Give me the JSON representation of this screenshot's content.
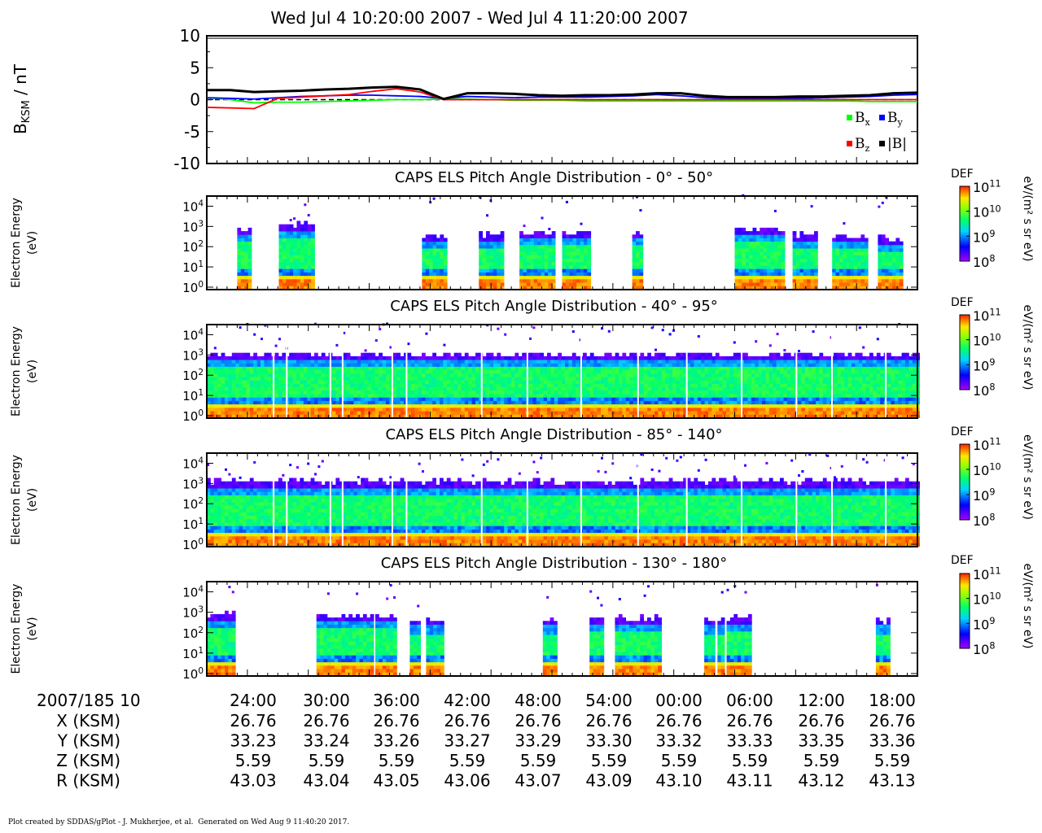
{
  "title": "Wed Jul 4 10:20:00 2007 - Wed Jul 4 11:20:00 2007",
  "footer": {
    "created": "Plot created by SDDAS/gPlot - J. Mukherjee, et al.",
    "generated": "Generated on Wed Aug 9 11:40:20 2017."
  },
  "chart_data": [
    {
      "type": "line",
      "id": "mag",
      "ylabel": "B_KSM / nT",
      "ylim": [
        -10,
        10
      ],
      "yticks": [
        10,
        5,
        0,
        -5,
        -10
      ],
      "x": [
        0,
        2,
        4,
        6,
        8,
        10,
        12,
        14,
        16,
        18,
        20,
        22,
        24,
        26,
        28,
        30,
        32,
        34,
        36,
        38,
        40,
        42,
        44,
        46,
        48,
        50,
        52,
        54,
        56,
        58,
        60
      ],
      "series": [
        {
          "name": "Bx",
          "label": "B",
          "sub": "x",
          "color": "#00ff00",
          "values": [
            0.3,
            0.0,
            -0.5,
            -0.4,
            -0.4,
            -0.3,
            -0.2,
            -0.1,
            0.0,
            0.0,
            0.1,
            0.1,
            0.0,
            -0.1,
            -0.1,
            -0.1,
            -0.2,
            -0.2,
            -0.2,
            -0.2,
            -0.2,
            -0.2,
            -0.2,
            -0.2,
            -0.2,
            -0.2,
            -0.2,
            -0.2,
            -0.3,
            -0.3,
            -0.3
          ]
        },
        {
          "name": "By",
          "label": "B",
          "sub": "y",
          "color": "#0000ff",
          "values": [
            0.3,
            0.2,
            0.1,
            0.3,
            0.5,
            0.6,
            0.7,
            0.7,
            0.6,
            0.5,
            0.2,
            0.5,
            0.4,
            0.3,
            0.4,
            0.4,
            0.4,
            0.5,
            0.6,
            0.8,
            0.6,
            0.3,
            0.2,
            0.2,
            0.2,
            0.2,
            0.3,
            0.4,
            0.5,
            0.7,
            0.8
          ]
        },
        {
          "name": "Bz",
          "label": "B",
          "sub": "z",
          "color": "#ff0000",
          "values": [
            -1.2,
            -1.3,
            -1.4,
            0.2,
            0.4,
            0.6,
            0.8,
            1.3,
            1.7,
            1.2,
            0.0,
            0.0,
            0.0,
            0.0,
            0.0,
            0.0,
            0.0,
            0.0,
            0.0,
            0.0,
            0.0,
            0.0,
            0.0,
            0.0,
            0.0,
            0.0,
            0.0,
            0.0,
            0.0,
            0.0,
            0.0
          ]
        },
        {
          "name": "|B|",
          "label": "|B|",
          "sub": "",
          "color": "#000000",
          "values": [
            1.5,
            1.5,
            1.2,
            1.3,
            1.4,
            1.6,
            1.7,
            1.9,
            2.0,
            1.6,
            0.1,
            1.0,
            1.0,
            0.9,
            0.7,
            0.6,
            0.7,
            0.7,
            0.8,
            1.0,
            1.0,
            0.6,
            0.4,
            0.4,
            0.4,
            0.5,
            0.5,
            0.6,
            0.7,
            1.0,
            1.1
          ]
        }
      ]
    },
    {
      "type": "heatmap",
      "id": "pad1",
      "title": "CAPS ELS Pitch Angle Distribution - 0° - 50°",
      "ylabel": "Electron Energy (eV)",
      "yrange": [
        0,
        4.3
      ],
      "colorbar": {
        "title": "DEF",
        "unit": "eV/(m² s sr eV)",
        "range": [
          8,
          11
        ],
        "ticks": [
          "10",
          "10",
          "10",
          "10"
        ],
        "exps": [
          "11",
          "10",
          "9",
          "8"
        ]
      },
      "segments": [
        [
          3.0,
          4.3,
          2.7
        ],
        [
          7.1,
          10.5,
          2.9
        ],
        [
          21.2,
          23.5,
          2.3
        ],
        [
          26.8,
          29.0,
          2.4
        ],
        [
          30.8,
          34.2,
          2.5
        ],
        [
          35.0,
          37.7,
          2.5
        ],
        [
          41.9,
          42.8,
          2.5
        ],
        [
          52.0,
          56.8,
          2.6
        ],
        [
          57.7,
          59.9,
          2.4
        ],
        [
          61.6,
          65.1,
          2.3
        ],
        [
          66.1,
          68.3,
          2.2
        ]
      ]
    },
    {
      "type": "heatmap",
      "id": "pad2",
      "title": "CAPS ELS Pitch Angle Distribution - 40° - 95°",
      "ylabel": "Electron Energy (eV)",
      "yrange": [
        0,
        4.3
      ],
      "colorbar": {
        "title": "DEF",
        "unit": "eV/(m² s sr eV)",
        "range": [
          8,
          11
        ],
        "ticks": [
          "10",
          "10",
          "10",
          "10"
        ],
        "exps": [
          "11",
          "10",
          "9",
          "8"
        ]
      },
      "segments": [
        [
          0.0,
          70.0,
          2.8
        ]
      ]
    },
    {
      "type": "heatmap",
      "id": "pad3",
      "title": "CAPS ELS Pitch Angle Distribution - 85° - 140°",
      "ylabel": "Electron Energy (eV)",
      "yrange": [
        0,
        4.3
      ],
      "colorbar": {
        "title": "DEF",
        "unit": "eV/(m² s sr eV)",
        "range": [
          8,
          11
        ],
        "ticks": [
          "10",
          "10",
          "10",
          "10"
        ],
        "exps": [
          "11",
          "10",
          "9",
          "8"
        ]
      },
      "segments": [
        [
          0.0,
          70.0,
          2.9
        ]
      ]
    },
    {
      "type": "heatmap",
      "id": "pad4",
      "title": "CAPS ELS Pitch Angle Distribution - 130° - 180°",
      "ylabel": "Electron Energy (eV)",
      "yrange": [
        0,
        4.3
      ],
      "colorbar": {
        "title": "DEF",
        "unit": "eV/(m² s sr eV)",
        "range": [
          8,
          11
        ],
        "ticks": [
          "10",
          "10",
          "10",
          "10"
        ],
        "exps": [
          "11",
          "10",
          "9",
          "8"
        ]
      },
      "segments": [
        [
          0.0,
          2.5,
          2.7
        ],
        [
          10.8,
          16.1,
          2.6
        ],
        [
          16.6,
          18.4,
          2.6
        ],
        [
          20.0,
          20.9,
          2.4
        ],
        [
          21.6,
          23.3,
          2.4
        ],
        [
          33.1,
          34.4,
          2.4
        ],
        [
          37.7,
          39.1,
          2.5
        ],
        [
          40.2,
          44.5,
          2.5
        ],
        [
          49.0,
          49.9,
          2.4
        ],
        [
          50.3,
          51.0,
          2.4
        ],
        [
          51.2,
          53.4,
          2.5
        ],
        [
          65.9,
          67.3,
          2.4
        ]
      ]
    }
  ],
  "yticks_log": [
    "10",
    "10",
    "10",
    "10",
    "10"
  ],
  "yticks_log_exp": [
    "4",
    "3",
    "2",
    "1",
    "0"
  ],
  "time_axis": {
    "header": "2007/185 10",
    "ticks": [
      "24:00",
      "30:00",
      "36:00",
      "42:00",
      "48:00",
      "54:00",
      "00:00",
      "06:00",
      "12:00",
      "18:00"
    ]
  },
  "ephemeris": [
    {
      "label": "X (KSM)",
      "values": [
        "26.76",
        "26.76",
        "26.76",
        "26.76",
        "26.76",
        "26.76",
        "26.76",
        "26.76",
        "26.76",
        "26.76"
      ]
    },
    {
      "label": "Y (KSM)",
      "values": [
        "33.23",
        "33.24",
        "33.26",
        "33.27",
        "33.29",
        "33.30",
        "33.32",
        "33.33",
        "33.35",
        "33.36"
      ]
    },
    {
      "label": "Z (KSM)",
      "values": [
        "5.59",
        "5.59",
        "5.59",
        "5.59",
        "5.59",
        "5.59",
        "5.59",
        "5.59",
        "5.59",
        "5.59"
      ]
    },
    {
      "label": "R (KSM)",
      "values": [
        "43.03",
        "43.04",
        "43.05",
        "43.06",
        "43.07",
        "43.09",
        "43.10",
        "43.11",
        "43.12",
        "43.13"
      ]
    }
  ]
}
